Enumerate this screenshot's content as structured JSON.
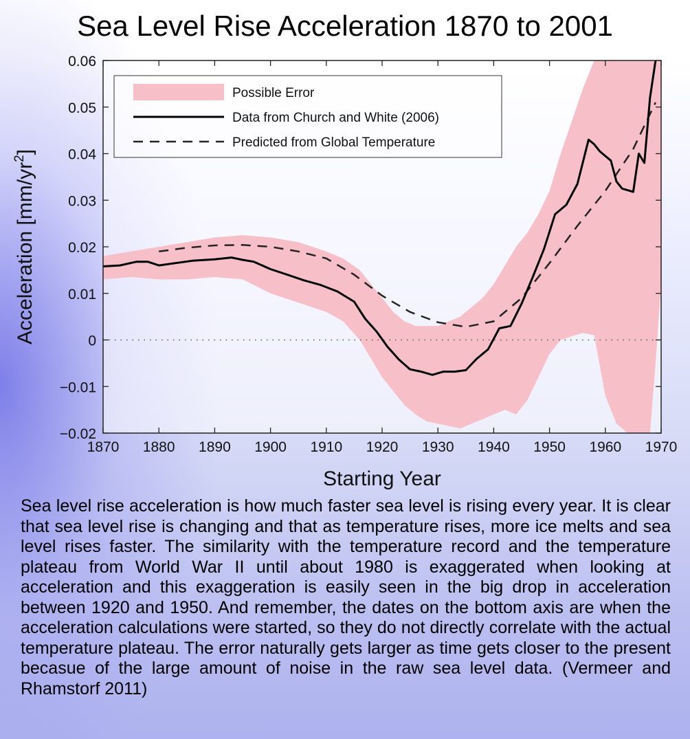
{
  "title": "Sea Level Rise Acceleration 1870 to 2001",
  "caption": "Sea level rise acceleration is how much faster sea level is rising every year. It is clear that sea level rise is changing and that as temperature rises, more ice melts and sea level rises faster. The similarity with the temperature record and the temperature plateau from World War II until about 1980 is exaggerated when looking at acceleration and this exaggeration is easily seen in the big drop in acceleration between 1920 and 1950. And remember, the dates on the bottom axis are when the acceleration calculations were started, so they do not directly correlate with the actual temperature plateau. The error naturally gets larger as time gets closer to the present becasue of the large amount of noise in the raw sea level data. (Vermeer and Rhamstorf 2011)",
  "colors": {
    "error_band": "#f7bfc8",
    "data_line": "#000000",
    "predicted_line": "#222222"
  },
  "chart_data": {
    "type": "line",
    "xlabel": "Starting Year",
    "ylabel_main": "Acceleration [mm/yr",
    "ylabel_sup": "2",
    "ylabel_end": "]",
    "xlim": [
      1870,
      1970
    ],
    "ylim": [
      -0.02,
      0.06
    ],
    "xticks": [
      1870,
      1880,
      1890,
      1900,
      1910,
      1920,
      1930,
      1940,
      1950,
      1960,
      1970
    ],
    "xtick_labels": [
      "1870",
      "1880",
      "1890",
      "1900",
      "1910",
      "1920",
      "1930",
      "1940",
      "1950",
      "1960",
      "1970"
    ],
    "yticks": [
      -0.02,
      -0.01,
      0,
      0.01,
      0.02,
      0.03,
      0.04,
      0.05,
      0.06
    ],
    "ytick_labels": [
      "−0.02",
      "−0.01",
      "0",
      "0.01",
      "0.02",
      "0.03",
      "0.04",
      "0.05",
      "0.06"
    ],
    "legend_placement": "top-left",
    "series": [
      {
        "name": "Possible Error",
        "kind": "band",
        "x": [
          1870,
          1875,
          1880,
          1885,
          1890,
          1895,
          1900,
          1905,
          1910,
          1913,
          1916,
          1918,
          1920,
          1922,
          1924,
          1926,
          1928,
          1930,
          1932,
          1934,
          1936,
          1938,
          1940,
          1942,
          1944,
          1946,
          1948,
          1950,
          1952,
          1954,
          1956,
          1958,
          1960,
          1962,
          1964,
          1966,
          1968,
          1969,
          1970
        ],
        "upper": [
          0.018,
          0.019,
          0.02,
          0.021,
          0.022,
          0.0225,
          0.022,
          0.021,
          0.019,
          0.0175,
          0.015,
          0.012,
          0.009,
          0.006,
          0.004,
          0.003,
          0.003,
          0.003,
          0.004,
          0.005,
          0.007,
          0.009,
          0.012,
          0.016,
          0.02,
          0.023,
          0.027,
          0.032,
          0.04,
          0.047,
          0.054,
          0.06,
          0.06,
          0.06,
          0.06,
          0.06,
          0.06,
          0.06,
          0.06
        ],
        "lower": [
          0.013,
          0.0135,
          0.013,
          0.013,
          0.0135,
          0.013,
          0.01,
          0.008,
          0.006,
          0.004,
          0.0,
          -0.004,
          -0.008,
          -0.011,
          -0.014,
          -0.016,
          -0.0175,
          -0.018,
          -0.0185,
          -0.019,
          -0.018,
          -0.017,
          -0.016,
          -0.015,
          -0.016,
          -0.013,
          -0.008,
          -0.003,
          0.0,
          0.0008,
          0.0015,
          0.001,
          -0.012,
          -0.018,
          -0.02,
          -0.02,
          -0.02,
          -0.005,
          0.012
        ]
      },
      {
        "name": "Data from Church and White (2006)",
        "kind": "line",
        "x": [
          1870,
          1873,
          1876,
          1878,
          1880,
          1883,
          1886,
          1890,
          1893,
          1895,
          1897,
          1900,
          1903,
          1906,
          1909,
          1912,
          1915,
          1917,
          1919,
          1921,
          1923,
          1925,
          1927,
          1929,
          1931,
          1933,
          1935,
          1937,
          1939,
          1941,
          1943,
          1945,
          1947,
          1949,
          1951,
          1953,
          1955,
          1957,
          1958,
          1959,
          1961,
          1962,
          1963,
          1965,
          1966,
          1967,
          1968,
          1969
        ],
        "y": [
          0.0158,
          0.016,
          0.0168,
          0.0168,
          0.016,
          0.0165,
          0.017,
          0.0173,
          0.0177,
          0.0172,
          0.0168,
          0.0152,
          0.014,
          0.0128,
          0.0118,
          0.0104,
          0.0082,
          0.0045,
          0.0018,
          -0.0015,
          -0.0042,
          -0.0063,
          -0.0068,
          -0.0075,
          -0.0068,
          -0.0068,
          -0.0065,
          -0.004,
          -0.002,
          0.0025,
          0.003,
          0.0078,
          0.0135,
          0.0195,
          0.027,
          0.029,
          0.0335,
          0.043,
          0.042,
          0.0405,
          0.0385,
          0.034,
          0.0325,
          0.0318,
          0.04,
          0.038,
          0.052,
          0.06
        ]
      },
      {
        "name": "Predicted from Global Temperature",
        "kind": "dashed",
        "x": [
          1880,
          1885,
          1890,
          1895,
          1900,
          1905,
          1910,
          1915,
          1920,
          1925,
          1930,
          1935,
          1940,
          1945,
          1950,
          1955,
          1960,
          1965,
          1969
        ],
        "y": [
          0.019,
          0.0198,
          0.0203,
          0.0204,
          0.02,
          0.019,
          0.0175,
          0.014,
          0.0095,
          0.006,
          0.0038,
          0.0028,
          0.004,
          0.009,
          0.0165,
          0.0245,
          0.032,
          0.041,
          0.051
        ]
      }
    ]
  }
}
